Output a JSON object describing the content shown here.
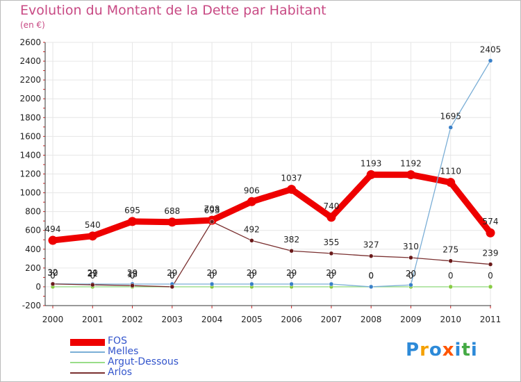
{
  "chart_data": {
    "type": "line",
    "title": "Evolution du Montant de la Dette par Habitant",
    "subtitle": "(en €)",
    "xlabel": "",
    "ylabel": "",
    "ylim": [
      -200,
      2600
    ],
    "yticks": [
      "-200",
      "0",
      "200",
      "400",
      "600",
      "800",
      "1000",
      "1200",
      "1400",
      "1600",
      "1800",
      "2000",
      "2200",
      "2400",
      "2600"
    ],
    "ytick_values": [
      -200,
      0,
      200,
      400,
      600,
      800,
      1000,
      1200,
      1400,
      1600,
      1800,
      2000,
      2200,
      2400,
      2600
    ],
    "categories": [
      "2000",
      "2001",
      "2002",
      "2003",
      "2004",
      "2005",
      "2006",
      "2007",
      "2008",
      "2009",
      "2010",
      "2011"
    ],
    "grid": true,
    "legend_position": "bottom-left",
    "series": [
      {
        "name": "FOS",
        "color": "#ee0000",
        "values": [
          494,
          540,
          695,
          688,
          708,
          906,
          1037,
          740,
          1193,
          1192,
          1110,
          574
        ],
        "labels": [
          "494",
          "540",
          "695",
          "688",
          "708",
          "906",
          "1037",
          "740",
          "1193",
          "1192",
          "1110",
          "574"
        ]
      },
      {
        "name": "Melles",
        "color": "#7aaed6",
        "marker_color": "#3a80c8",
        "values": [
          32,
          29,
          29,
          29,
          29,
          29,
          29,
          29,
          0,
          20,
          1695,
          2405
        ],
        "labels": [
          "32",
          "29",
          "29",
          "29",
          "29",
          "29",
          "29",
          "29",
          "0",
          "20",
          "1695",
          "2405"
        ]
      },
      {
        "name": "Argut-Dessous",
        "color": "#99dd88",
        "marker_color": "#88cc44",
        "values": [
          0,
          0,
          0,
          0,
          0,
          0,
          0,
          0,
          0,
          0,
          0,
          0
        ],
        "labels": [
          "0",
          "0",
          "0",
          "0",
          "0",
          "0",
          "0",
          "0",
          "0",
          "0",
          "0",
          "0"
        ]
      },
      {
        "name": "Arlos",
        "color": "#7a3030",
        "marker_color": "#6a1a1a",
        "values": [
          30,
          21,
          13,
          0,
          693,
          492,
          382,
          355,
          327,
          310,
          275,
          239
        ],
        "labels": [
          "30",
          "21",
          "13",
          "0",
          "693",
          "492",
          "382",
          "355",
          "327",
          "310",
          "275",
          "239"
        ]
      }
    ]
  },
  "legend": {
    "items": [
      "FOS",
      "Melles",
      "Argut-Dessous",
      "Arlos"
    ]
  },
  "brand": {
    "letters": [
      "P",
      "r",
      "o",
      "x",
      "i",
      "t",
      "i"
    ],
    "colors": [
      "#2d8ad8",
      "#f4a000",
      "#2d8ad8",
      "#ff5500",
      "#2d8ad8",
      "#44aa44",
      "#2d8ad8"
    ]
  }
}
